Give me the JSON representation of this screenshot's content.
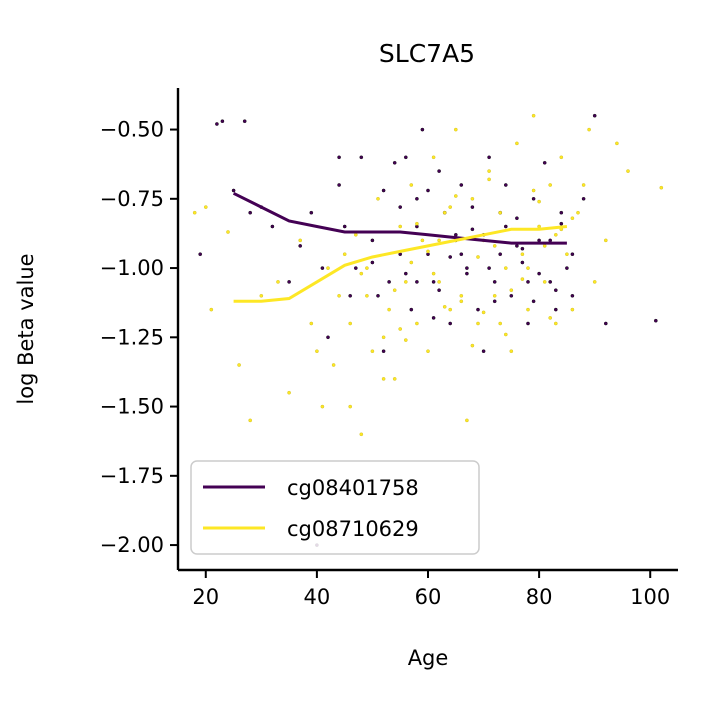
{
  "chart_data": {
    "type": "scatter",
    "title": "SLC7A5",
    "xlabel": "Age",
    "ylabel": "log Beta value",
    "xlim": [
      15,
      105
    ],
    "ylim": [
      -2.09,
      -0.35
    ],
    "xticks": [
      20,
      40,
      60,
      80,
      100
    ],
    "yticks": [
      -0.5,
      -0.75,
      -1.0,
      -1.25,
      -1.5,
      -1.75,
      -2.0
    ],
    "xtick_labels": [
      "20",
      "40",
      "60",
      "80",
      "100"
    ],
    "ytick_labels": [
      "−0.50",
      "−0.75",
      "−1.00",
      "−1.25",
      "−1.50",
      "−1.75",
      "−2.00"
    ],
    "grid": false,
    "legend_position": "bottom-left",
    "series": [
      {
        "name": "cg08401758",
        "color": "#440154",
        "trend": {
          "x": [
            25,
            30,
            35,
            40,
            45,
            50,
            55,
            60,
            65,
            70,
            75,
            80,
            85
          ],
          "y": [
            -0.73,
            -0.78,
            -0.83,
            -0.85,
            -0.87,
            -0.87,
            -0.87,
            -0.88,
            -0.89,
            -0.9,
            -0.91,
            -0.91,
            -0.91
          ]
        },
        "points": {
          "x": [
            19,
            22,
            23,
            25,
            27,
            28,
            30,
            32,
            35,
            37,
            39,
            41,
            42,
            44,
            45,
            46,
            48,
            50,
            52,
            53,
            55,
            56,
            57,
            58,
            59,
            60,
            61,
            62,
            63,
            64,
            65,
            66,
            67,
            68,
            69,
            70,
            71,
            72,
            73,
            74,
            75,
            76,
            77,
            78,
            79,
            80,
            81,
            82,
            83,
            84,
            85,
            86,
            88,
            90,
            92,
            101,
            47,
            51,
            54,
            58,
            62,
            66,
            70,
            74,
            78,
            82,
            86,
            44,
            50,
            56,
            60,
            64,
            68,
            72,
            76,
            80,
            84,
            52,
            58,
            65,
            71,
            77,
            83,
            55,
            61,
            67,
            73,
            79,
            40
          ],
          "y": [
            -0.95,
            -0.48,
            -0.47,
            -0.72,
            -0.47,
            -0.8,
            -0.78,
            -0.85,
            -1.05,
            -0.92,
            -0.8,
            -1.0,
            -1.25,
            -0.7,
            -0.85,
            -1.1,
            -0.6,
            -0.9,
            -0.72,
            -1.05,
            -0.95,
            -0.6,
            -1.15,
            -0.85,
            -0.5,
            -0.95,
            -1.05,
            -0.65,
            -0.8,
            -1.2,
            -0.9,
            -0.7,
            -1.0,
            -0.78,
            -1.15,
            -0.88,
            -0.6,
            -1.05,
            -0.95,
            -0.7,
            -1.1,
            -0.82,
            -0.98,
            -1.2,
            -0.75,
            -0.9,
            -0.62,
            -1.05,
            -1.15,
            -0.8,
            -1.0,
            -0.95,
            -0.75,
            -0.45,
            -1.2,
            -1.19,
            -1.0,
            -1.1,
            -0.62,
            -0.75,
            -1.08,
            -0.95,
            -1.3,
            -0.85,
            -1.05,
            -0.9,
            -1.1,
            -0.6,
            -0.98,
            -1.02,
            -0.72,
            -0.96,
            -0.86,
            -1.12,
            -0.92,
            -1.02,
            -0.84,
            -1.3,
            -1.05,
            -0.88,
            -1.0,
            -0.93,
            -1.08,
            -0.78,
            -1.18,
            -1.02,
            -0.8,
            -1.12,
            -2.0
          ]
        }
      },
      {
        "name": "cg08710629",
        "color": "#fde725",
        "trend": {
          "x": [
            25,
            30,
            35,
            40,
            45,
            50,
            55,
            60,
            65,
            70,
            75,
            80,
            85
          ],
          "y": [
            -1.12,
            -1.12,
            -1.11,
            -1.05,
            -0.99,
            -0.96,
            -0.94,
            -0.92,
            -0.9,
            -0.88,
            -0.86,
            -0.86,
            -0.85
          ]
        },
        "points": {
          "x": [
            18,
            20,
            21,
            24,
            26,
            28,
            30,
            33,
            35,
            37,
            39,
            40,
            42,
            43,
            45,
            46,
            48,
            49,
            50,
            51,
            53,
            54,
            55,
            56,
            57,
            58,
            59,
            60,
            61,
            62,
            63,
            64,
            65,
            66,
            67,
            68,
            69,
            70,
            71,
            72,
            73,
            74,
            75,
            76,
            77,
            78,
            79,
            80,
            81,
            82,
            83,
            84,
            85,
            86,
            87,
            89,
            90,
            92,
            94,
            96,
            102,
            44,
            47,
            52,
            57,
            61,
            64,
            68,
            72,
            75,
            79,
            82,
            86,
            49,
            55,
            60,
            66,
            71,
            77,
            83,
            52,
            58,
            63,
            69,
            74,
            80,
            46,
            54,
            62,
            70,
            78,
            84,
            88,
            41,
            48,
            56,
            65,
            73,
            81
          ],
          "y": [
            -0.8,
            -0.78,
            -1.15,
            -0.87,
            -1.35,
            -1.55,
            -1.1,
            -1.05,
            -1.45,
            -0.9,
            -1.2,
            -1.3,
            -1.0,
            -1.35,
            -0.95,
            -1.2,
            -1.6,
            -1.1,
            -1.3,
            -0.75,
            -1.15,
            -1.4,
            -0.85,
            -1.05,
            -0.7,
            -1.2,
            -0.9,
            -1.3,
            -0.6,
            -1.05,
            -0.8,
            -1.15,
            -0.5,
            -1.1,
            -1.55,
            -0.75,
            -1.2,
            -0.9,
            -0.65,
            -1.1,
            -0.8,
            -1.0,
            -1.3,
            -0.55,
            -0.95,
            -1.15,
            -0.45,
            -0.85,
            -1.05,
            -0.7,
            -1.2,
            -0.6,
            -0.95,
            -1.15,
            -0.8,
            -0.5,
            -1.05,
            -0.9,
            -0.55,
            -0.65,
            -0.71,
            -1.1,
            -0.88,
            -1.25,
            -0.98,
            -1.02,
            -0.78,
            -1.28,
            -0.92,
            -1.08,
            -0.72,
            -1.18,
            -0.82,
            -1.0,
            -1.22,
            -0.94,
            -1.12,
            -0.68,
            -1.04,
            -0.88,
            -1.4,
            -0.84,
            -1.14,
            -0.96,
            -1.24,
            -0.76,
            -1.5,
            -1.08,
            -0.9,
            -1.16,
            -1.0,
            -0.86,
            -0.7,
            -1.5,
            -1.02,
            -1.26,
            -0.74,
            -1.2,
            -0.92
          ]
        }
      }
    ]
  }
}
